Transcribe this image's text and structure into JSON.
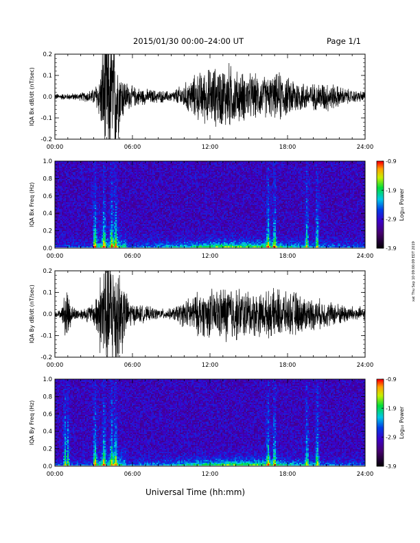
{
  "header": {
    "title": "2015/01/30  00:00–24:00 UT",
    "page_label": "Page 1/1"
  },
  "xlabel": "Universal Time (hh:mm)",
  "side_stamp": "xat Thu Sep 10 09:00:09 EDT 2019",
  "colorbar": {
    "label": "Log₁₀ Power",
    "ticks": [
      "-0.9",
      "-1.9",
      "-2.9",
      "-3.9"
    ],
    "range": [
      -3.9,
      -0.9
    ]
  },
  "chart_data": [
    {
      "type": "line",
      "panel": "Bx waveform",
      "ylabel": "IQA Bx dB/dt (nT/sec)",
      "x_ticks": [
        "00:00",
        "06:00",
        "12:00",
        "18:00",
        "24:00"
      ],
      "xlim_hours": [
        0,
        24
      ],
      "ylim": [
        -0.2,
        0.2
      ],
      "y_ticks": [
        "0.2",
        "0.1",
        "0.0",
        "-0.1",
        "-0.2"
      ],
      "series": [
        {
          "x_hours": [
            0,
            1,
            2,
            3,
            3.5,
            3.8,
            4.2,
            4.7,
            5.0,
            5.5,
            6,
            7,
            8,
            9,
            10,
            11,
            12,
            13,
            13.5,
            14,
            15,
            16,
            17,
            17.5,
            18,
            18.5,
            19,
            20,
            21,
            22,
            23,
            24
          ],
          "amplitude": [
            0.012,
            0.012,
            0.015,
            0.03,
            0.09,
            0.25,
            0.25,
            0.25,
            0.12,
            0.06,
            0.04,
            0.03,
            0.025,
            0.02,
            0.05,
            0.09,
            0.11,
            0.12,
            0.13,
            0.1,
            0.09,
            0.08,
            0.08,
            0.1,
            0.07,
            0.08,
            0.06,
            0.05,
            0.06,
            0.04,
            0.025,
            0.02
          ]
        }
      ]
    },
    {
      "type": "heatmap",
      "panel": "Bx spectrogram",
      "ylabel": "IQA Bx Freq (Hz)",
      "x_ticks": [
        "00:00",
        "06:00",
        "12:00",
        "18:00",
        "24:00"
      ],
      "xlim_hours": [
        0,
        24
      ],
      "ylim": [
        0,
        1.0
      ],
      "y_ticks": [
        "1.0",
        "0.8",
        "0.6",
        "0.4",
        "0.2",
        "0.0"
      ],
      "events_hours": [
        3.1,
        3.8,
        4.4,
        4.7,
        16.5,
        17.0,
        19.5,
        20.3
      ]
    },
    {
      "type": "line",
      "panel": "By waveform",
      "ylabel": "IQA By dB/dt (nT/sec)",
      "x_ticks": [
        "00:00",
        "06:00",
        "12:00",
        "18:00",
        "24:00"
      ],
      "xlim_hours": [
        0,
        24
      ],
      "ylim": [
        -0.2,
        0.2
      ],
      "y_ticks": [
        "0.2",
        "0.1",
        "0.0",
        "-0.1",
        "-0.2"
      ],
      "series": [
        {
          "x_hours": [
            0,
            0.5,
            0.8,
            1.0,
            1.3,
            2,
            3,
            3.5,
            3.8,
            4.2,
            4.7,
            5.0,
            5.5,
            6,
            7,
            8,
            9,
            10,
            11,
            12,
            13,
            13.5,
            14,
            15,
            16,
            17,
            17.5,
            18,
            18.5,
            19,
            20,
            21,
            22,
            23,
            24
          ],
          "amplitude": [
            0.012,
            0.015,
            0.09,
            0.11,
            0.03,
            0.02,
            0.04,
            0.15,
            0.25,
            0.25,
            0.25,
            0.2,
            0.08,
            0.04,
            0.03,
            0.02,
            0.02,
            0.05,
            0.08,
            0.09,
            0.1,
            0.12,
            0.1,
            0.09,
            0.08,
            0.09,
            0.1,
            0.07,
            0.09,
            0.07,
            0.06,
            0.05,
            0.04,
            0.03,
            0.025
          ]
        }
      ]
    },
    {
      "type": "heatmap",
      "panel": "By spectrogram",
      "ylabel": "IQA By Freq (Hz)",
      "x_ticks": [
        "00:00",
        "06:00",
        "12:00",
        "18:00",
        "24:00"
      ],
      "xlim_hours": [
        0,
        24
      ],
      "ylim": [
        0,
        1.0
      ],
      "y_ticks": [
        "1.0",
        "0.8",
        "0.6",
        "0.4",
        "0.2",
        "0.0"
      ],
      "events_hours": [
        0.8,
        1.0,
        3.1,
        3.8,
        4.4,
        4.7,
        16.5,
        17.0,
        19.5,
        20.3
      ]
    }
  ]
}
